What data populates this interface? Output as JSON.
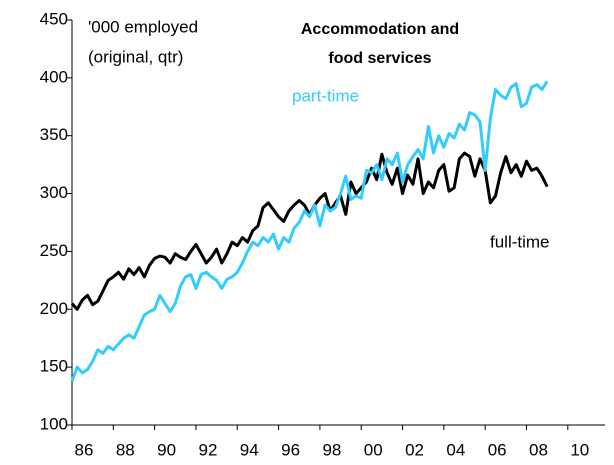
{
  "chart_data": {
    "type": "line",
    "title": [
      "Accommodation and",
      "food services"
    ],
    "annotations": [
      "'000 employed",
      "(original, qtr)"
    ],
    "x": [
      1986,
      1986.25,
      1986.5,
      1986.75,
      1987,
      1987.25,
      1987.5,
      1987.75,
      1988,
      1988.25,
      1988.5,
      1988.75,
      1989,
      1989.25,
      1989.5,
      1989.75,
      1990,
      1990.25,
      1990.5,
      1990.75,
      1991,
      1991.25,
      1991.5,
      1991.75,
      1992,
      1992.25,
      1992.5,
      1992.75,
      1993,
      1993.25,
      1993.5,
      1993.75,
      1994,
      1994.25,
      1994.5,
      1994.75,
      1995,
      1995.25,
      1995.5,
      1995.75,
      1996,
      1996.25,
      1996.5,
      1996.75,
      1997,
      1997.25,
      1997.5,
      1997.75,
      1998,
      1998.25,
      1998.5,
      1998.75,
      1999,
      1999.25,
      1999.5,
      1999.75,
      2000,
      2000.25,
      2000.5,
      2000.75,
      2001,
      2001.25,
      2001.5,
      2001.75,
      2002,
      2002.25,
      2002.5,
      2002.75,
      2003,
      2003.25,
      2003.5,
      2003.75,
      2004,
      2004.25,
      2004.5,
      2004.75,
      2005,
      2005.25,
      2005.5,
      2005.75,
      2006,
      2006.25,
      2006.5,
      2006.75,
      2007,
      2007.25,
      2007.5,
      2007.75,
      2008,
      2008.25,
      2008.5,
      2008.75,
      2009
    ],
    "series": [
      {
        "name": "part-time",
        "color": "#33ccff",
        "values": [
          138,
          150,
          145,
          148,
          155,
          165,
          162,
          168,
          165,
          170,
          175,
          178,
          175,
          185,
          195,
          198,
          200,
          212,
          205,
          198,
          205,
          220,
          228,
          230,
          218,
          230,
          232,
          228,
          225,
          218,
          226,
          228,
          232,
          240,
          250,
          258,
          255,
          262,
          258,
          265,
          252,
          262,
          258,
          270,
          275,
          285,
          280,
          290,
          272,
          290,
          285,
          288,
          300,
          315,
          295,
          298,
          296,
          320,
          318,
          325,
          312,
          330,
          325,
          335,
          310,
          325,
          332,
          338,
          330,
          358,
          335,
          350,
          340,
          352,
          348,
          360,
          355,
          370,
          368,
          362,
          320,
          365,
          390,
          385,
          382,
          392,
          395,
          375,
          378,
          392,
          394,
          390,
          397
        ]
      },
      {
        "name": "full-time",
        "color": "#000000",
        "values": [
          205,
          200,
          208,
          212,
          204,
          207,
          216,
          225,
          228,
          232,
          226,
          235,
          230,
          236,
          228,
          238,
          244,
          246,
          245,
          240,
          248,
          245,
          243,
          250,
          256,
          248,
          240,
          245,
          252,
          240,
          248,
          258,
          255,
          262,
          258,
          268,
          272,
          288,
          292,
          286,
          280,
          276,
          285,
          290,
          294,
          290,
          282,
          290,
          296,
          300,
          285,
          292,
          298,
          282,
          310,
          300,
          305,
          310,
          322,
          312,
          334,
          318,
          308,
          322,
          300,
          316,
          308,
          330,
          300,
          310,
          305,
          320,
          325,
          302,
          305,
          330,
          335,
          332,
          315,
          330,
          320,
          292,
          298,
          318,
          332,
          318,
          325,
          315,
          328,
          320,
          322,
          315,
          306
        ]
      }
    ],
    "xlim": [
      1986,
      2011.8
    ],
    "xticks": [
      {
        "value": 1986,
        "label": "86"
      },
      {
        "value": 1988,
        "label": "88"
      },
      {
        "value": 1990,
        "label": "90"
      },
      {
        "value": 1992,
        "label": "92"
      },
      {
        "value": 1994,
        "label": "94"
      },
      {
        "value": 1996,
        "label": "96"
      },
      {
        "value": 1998,
        "label": "98"
      },
      {
        "value": 2000,
        "label": "00"
      },
      {
        "value": 2002,
        "label": "02"
      },
      {
        "value": 2004,
        "label": "04"
      },
      {
        "value": 2006,
        "label": "06"
      },
      {
        "value": 2008,
        "label": "08"
      },
      {
        "value": 2010,
        "label": "10"
      }
    ],
    "ylim": [
      100,
      450
    ],
    "yticks": [
      100,
      150,
      200,
      250,
      300,
      350,
      400,
      450
    ]
  }
}
